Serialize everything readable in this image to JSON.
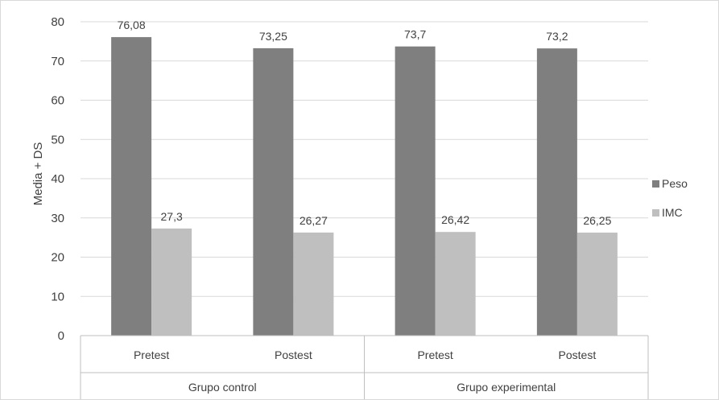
{
  "chart_data": {
    "type": "bar",
    "title": "",
    "xlabel": "",
    "ylabel": "Media + DS",
    "ylim": [
      0,
      80
    ],
    "ytick_step": 10,
    "grid": true,
    "legend_position": "right",
    "groups": [
      {
        "label": "Grupo control",
        "categories": [
          "Pretest",
          "Postest"
        ]
      },
      {
        "label": "Grupo experimental",
        "categories": [
          "Pretest",
          "Postest"
        ]
      }
    ],
    "categories": [
      "Pretest",
      "Postest",
      "Pretest",
      "Postest"
    ],
    "series": [
      {
        "name": "Peso",
        "color": "#7f7f7f",
        "values": [
          76.08,
          73.25,
          73.7,
          73.2
        ],
        "labels": [
          "76,08",
          "73,25",
          "73,7",
          "73,2"
        ]
      },
      {
        "name": "IMC",
        "color": "#bfbfbf",
        "values": [
          27.3,
          26.27,
          26.42,
          26.25
        ],
        "labels": [
          "27,3",
          "26,27",
          "26,42",
          "26,25"
        ]
      }
    ]
  }
}
